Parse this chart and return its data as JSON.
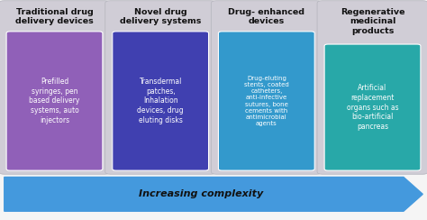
{
  "columns": [
    {
      "title": "Traditional drug\ndelivery devices",
      "body": "Prefilled\nsyringes, pen\nbased delivery\nsystems, auto\ninjectors",
      "outer_color": "#d0cdd6",
      "inner_color": "#9060b8",
      "title_color": "#111111",
      "body_text_color": "#ffffff",
      "title_lines": 2
    },
    {
      "title": "Novel drug\ndelivery systems",
      "body": "Transdermal\npatches,\nInhalation\ndevices, drug\neluting disks",
      "outer_color": "#d0cdd6",
      "inner_color": "#4040b0",
      "title_color": "#111111",
      "body_text_color": "#ffffff",
      "title_lines": 2
    },
    {
      "title": "Drug- enhanced\ndevices",
      "body": "Drug-eluting\nstents, coated\ncatheters,\nanti-infective\nsutures, bone\ncements with\nantimicrobial\nagents",
      "outer_color": "#d0cdd6",
      "inner_color": "#3399cc",
      "title_color": "#111111",
      "body_text_color": "#ffffff",
      "title_lines": 2
    },
    {
      "title": "Regenerative\nmedicinal\nproducts",
      "body": "Artificial\nreplacement\norgans such as\nbio-artificial\npancreas",
      "outer_color": "#d0cdd6",
      "inner_color": "#28a8a8",
      "title_color": "#111111",
      "body_text_color": "#ffffff",
      "title_lines": 3
    }
  ],
  "arrow_label": "Increasing complexity",
  "arrow_color": "#4499dd",
  "arrow_text_color": "#111111",
  "background_color": "#f5f5f5",
  "fig_width": 4.74,
  "fig_height": 2.44
}
